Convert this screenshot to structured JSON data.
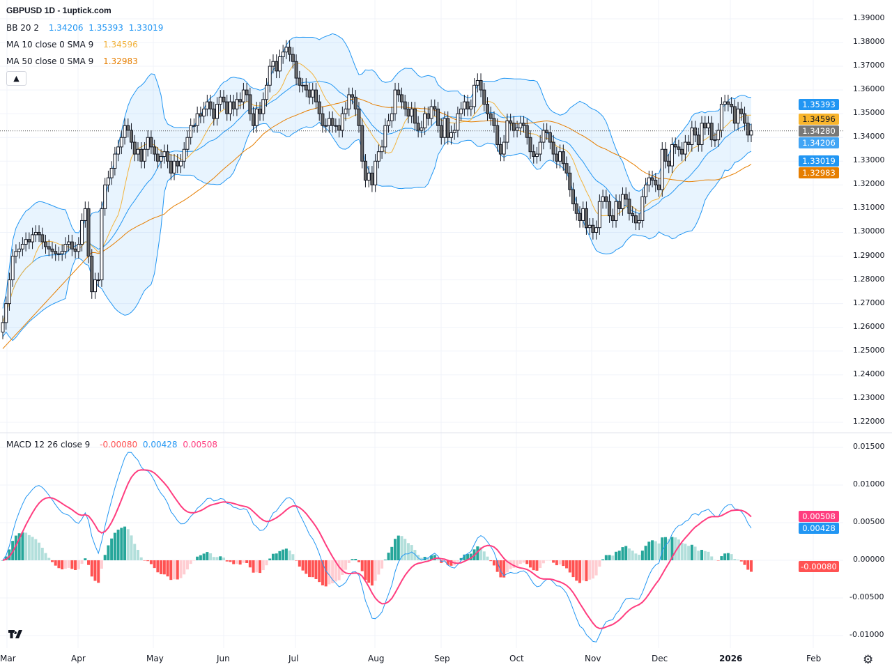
{
  "header": {
    "title": "GBPUSD 1D - 1uptick.com"
  },
  "legend": {
    "bb": {
      "label": "BB 20 2",
      "basis": "1.34206",
      "upper": "1.35393",
      "lower": "1.33019"
    },
    "ma10": {
      "label": "MA 10 close 0 SMA 9",
      "value": "1.34596"
    },
    "ma50": {
      "label": "MA 50 close 0 SMA 9",
      "value": "1.32983"
    },
    "macd": {
      "label": "MACD 12 26 close 9",
      "hist": "-0.00080",
      "macd": "0.00428",
      "signal": "0.00508"
    },
    "collapse_icon": "chevron-up-icon"
  },
  "price_tags": {
    "bb_upper": "1.35393",
    "ma10": "1.34596",
    "last": "1.34280",
    "bb_basis": "1.34206",
    "bb_lower": "1.33019",
    "ma50": "1.32983"
  },
  "macd_tags": {
    "signal": "0.00508",
    "macd": "0.00428",
    "hist": "-0.00080"
  },
  "colors": {
    "up": "#ffffff",
    "down": "#6b6b6b",
    "bb": "#2196f3",
    "bb_fill": "rgba(33,150,243,0.1)",
    "ma10": "#f2b33d",
    "ma50": "#e67e00",
    "macd": "#2196f3",
    "signal": "#ff3d7f",
    "hist_up": "#26a69a",
    "hist_up_light": "#b2dfdb",
    "hist_down": "#ff5252",
    "hist_down_light": "#ffcdd2",
    "last": "#787878"
  },
  "chart_data": [
    {
      "type": "candlestick",
      "title": "GBPUSD 1D",
      "y_ticks": [
        "1.39000",
        "1.38000",
        "1.37000",
        "1.36000",
        "1.35000",
        "1.34000",
        "1.33000",
        "1.32000",
        "1.31000",
        "1.30000",
        "1.29000",
        "1.28000",
        "1.27000",
        "1.26000",
        "1.25000",
        "1.24000",
        "1.23000",
        "1.22000"
      ],
      "x_ticks": [
        "Mar",
        "Apr",
        "May",
        "Jun",
        "Jul",
        "Aug",
        "Sep",
        "Oct",
        "Nov",
        "Dec",
        "2026",
        "Feb"
      ],
      "ylim": [
        1.2175,
        1.3905
      ],
      "last_price": 1.3428,
      "closes": [
        1.262,
        1.27,
        1.28,
        1.29,
        1.292,
        1.293,
        1.295,
        1.297,
        1.296,
        1.299,
        1.3,
        1.299,
        1.296,
        1.294,
        1.293,
        1.292,
        1.291,
        1.291,
        1.292,
        1.295,
        1.296,
        1.293,
        1.292,
        1.295,
        1.305,
        1.31,
        1.29,
        1.275,
        1.28,
        1.28,
        1.31,
        1.32,
        1.323,
        1.327,
        1.333,
        1.336,
        1.34,
        1.345,
        1.343,
        1.338,
        1.333,
        1.335,
        1.33,
        1.335,
        1.34,
        1.336,
        1.333,
        1.33,
        1.332,
        1.334,
        1.33,
        1.325,
        1.33,
        1.328,
        1.33,
        1.335,
        1.34,
        1.345,
        1.345,
        1.35,
        1.349,
        1.352,
        1.355,
        1.352,
        1.348,
        1.354,
        1.357,
        1.355,
        1.35,
        1.355,
        1.352,
        1.356,
        1.355,
        1.36,
        1.358,
        1.35,
        1.345,
        1.352,
        1.35,
        1.356,
        1.362,
        1.37,
        1.372,
        1.368,
        1.374,
        1.376,
        1.378,
        1.375,
        1.372,
        1.365,
        1.362,
        1.362,
        1.36,
        1.357,
        1.36,
        1.355,
        1.35,
        1.345,
        1.345,
        1.348,
        1.345,
        1.345,
        1.343,
        1.35,
        1.352,
        1.358,
        1.357,
        1.352,
        1.345,
        1.33,
        1.322,
        1.325,
        1.32,
        1.33,
        1.334,
        1.336,
        1.345,
        1.347,
        1.35,
        1.36,
        1.358,
        1.355,
        1.352,
        1.349,
        1.352,
        1.346,
        1.343,
        1.344,
        1.35,
        1.348,
        1.353,
        1.352,
        1.345,
        1.34,
        1.348,
        1.34,
        1.342,
        1.343,
        1.35,
        1.352,
        1.355,
        1.352,
        1.353,
        1.362,
        1.364,
        1.36,
        1.354,
        1.35,
        1.348,
        1.345,
        1.337,
        1.333,
        1.338,
        1.347,
        1.346,
        1.343,
        1.344,
        1.346,
        1.345,
        1.34,
        1.334,
        1.332,
        1.333,
        1.338,
        1.343,
        1.342,
        1.338,
        1.333,
        1.33,
        1.334,
        1.329,
        1.325,
        1.318,
        1.312,
        1.308,
        1.305,
        1.31,
        1.302,
        1.303,
        1.3,
        1.302,
        1.313,
        1.315,
        1.313,
        1.307,
        1.305,
        1.313,
        1.31,
        1.316,
        1.314,
        1.308,
        1.307,
        1.304,
        1.305,
        1.315,
        1.32,
        1.323,
        1.322,
        1.32,
        1.318,
        1.335,
        1.33,
        1.328,
        1.337,
        1.336,
        1.335,
        1.333,
        1.338,
        1.337,
        1.344,
        1.341,
        1.337,
        1.346,
        1.344,
        1.346,
        1.339,
        1.339,
        1.343,
        1.354,
        1.355,
        1.354,
        1.353,
        1.346,
        1.352,
        1.35,
        1.346,
        1.341,
        1.3428
      ]
    },
    {
      "type": "line",
      "title": "MACD 12 26 close 9",
      "y_ticks": [
        "0.01500",
        "0.01000",
        "0.00500",
        "0.00000",
        "-0.00500",
        "-0.01000"
      ],
      "ylim": [
        -0.0105,
        0.0155
      ]
    }
  ]
}
